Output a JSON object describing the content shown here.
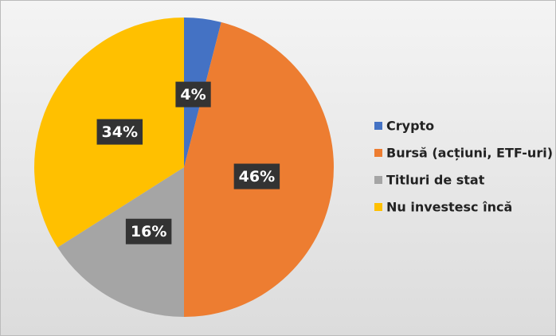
{
  "chart_data": {
    "type": "pie",
    "categories": [
      "Crypto",
      "Bursă (acțiuni, ETF-uri)",
      "Titluri de stat",
      "Nu investesc încă"
    ],
    "values": [
      4,
      46,
      16,
      34
    ],
    "value_labels": [
      "4%",
      "46%",
      "16%",
      "34%"
    ],
    "colors": [
      "#4472c4",
      "#ed7d31",
      "#a5a5a5",
      "#ffc000"
    ],
    "legend": "right"
  }
}
